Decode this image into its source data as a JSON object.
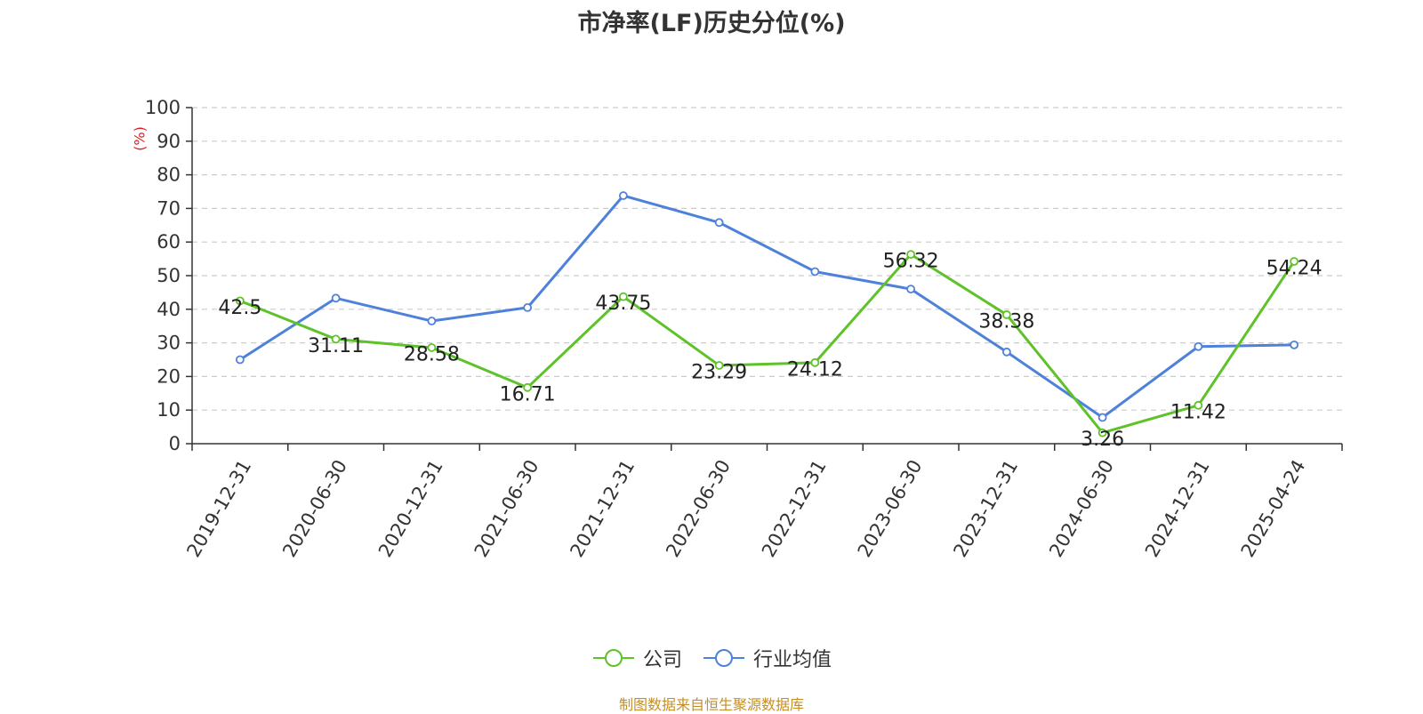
{
  "chart_data": {
    "type": "line",
    "title": "市净率(LF)历史分位(%)",
    "ylabel": "(%)",
    "xlabel": "",
    "ylim": [
      0,
      100
    ],
    "yticks": [
      0,
      10,
      20,
      30,
      40,
      50,
      60,
      70,
      80,
      90,
      100
    ],
    "categories": [
      "2019-12-31",
      "2020-06-30",
      "2020-12-31",
      "2021-06-30",
      "2021-12-31",
      "2022-06-30",
      "2022-12-31",
      "2023-06-30",
      "2023-12-31",
      "2024-06-30",
      "2024-12-31",
      "2025-04-24"
    ],
    "grid": true,
    "legend_position": "bottom",
    "series": [
      {
        "name": "公司",
        "color": "#5ec229",
        "show_labels": true,
        "values": [
          42.5,
          31.11,
          28.58,
          16.71,
          43.75,
          23.29,
          24.12,
          56.32,
          38.38,
          3.26,
          11.42,
          54.24
        ],
        "labels": [
          "42.5",
          "31.11",
          "28.58",
          "16.71",
          "43.75",
          "23.29",
          "24.12",
          "56.32",
          "38.38",
          "3.26",
          "11.42",
          "54.24"
        ]
      },
      {
        "name": "行业均值",
        "color": "#4e81d9",
        "show_labels": false,
        "values": [
          25.0,
          43.3,
          36.5,
          40.5,
          73.8,
          65.8,
          51.2,
          46.0,
          27.3,
          7.8,
          28.9,
          29.4
        ]
      }
    ]
  },
  "source_note": "制图数据来自恒生聚源数据库"
}
